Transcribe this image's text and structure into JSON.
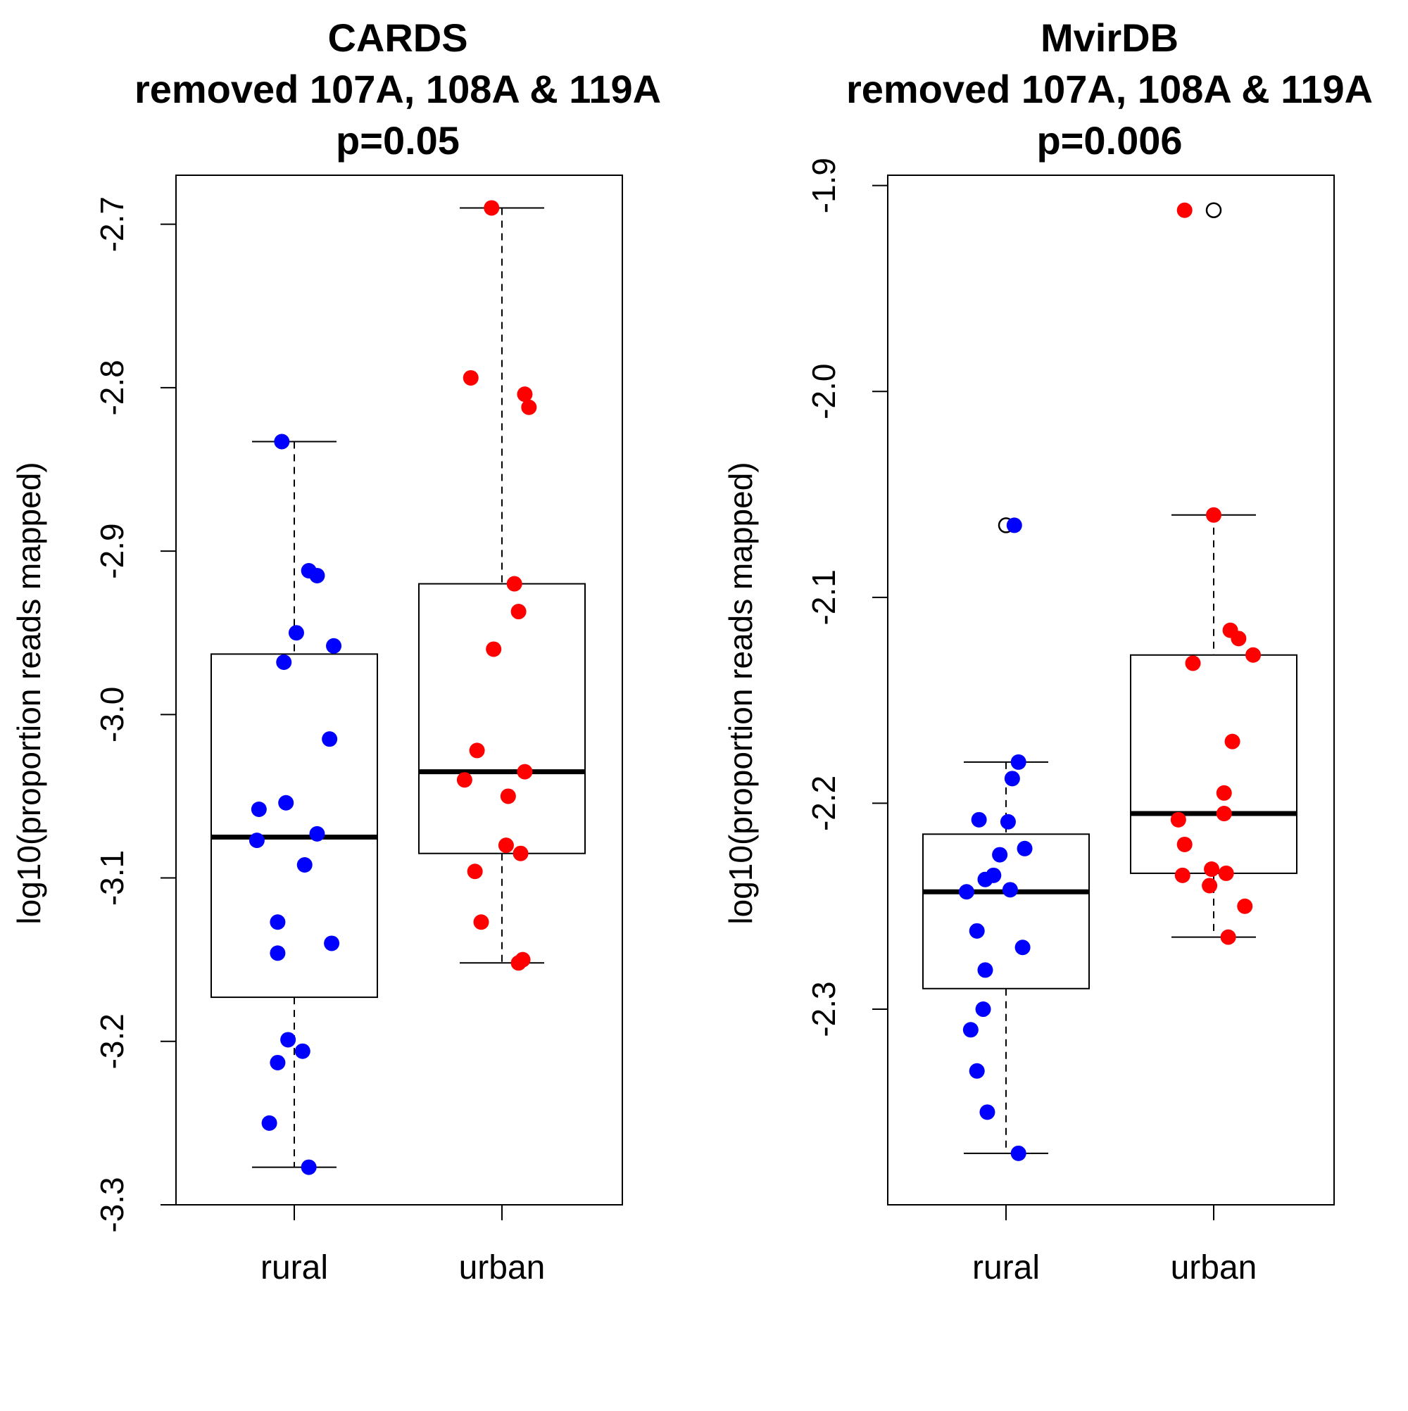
{
  "chart_data": [
    {
      "type": "box",
      "title_lines": [
        "CARDS",
        "removed 107A, 108A & 119A",
        "p=0.05"
      ],
      "ylabel": "log10(proportion reads mapped)",
      "ylim": [
        -3.3,
        -2.67
      ],
      "yticks": [
        -2.7,
        -2.8,
        -2.9,
        -3.0,
        -3.1,
        -3.2,
        -3.3
      ],
      "ytick_labels": [
        "-2.7",
        "-2.8",
        "-2.9",
        "-3.0",
        "-3.1",
        "-3.2",
        "-3.3"
      ],
      "categories": [
        "rural",
        "urban"
      ],
      "grid": false,
      "boxes": [
        {
          "category": "rural",
          "whisker_low": -3.277,
          "q1": -3.173,
          "median": -3.075,
          "q3": -2.963,
          "whisker_high": -2.833,
          "outliers": []
        },
        {
          "category": "urban",
          "whisker_low": -3.152,
          "q1": -3.085,
          "median": -3.035,
          "q3": -2.92,
          "whisker_high": -2.69,
          "outliers": []
        }
      ],
      "points": [
        {
          "category": "rural",
          "color": "#0000ff",
          "offsets": [
            -0.06,
            0.07,
            0.11,
            0.01,
            -0.05,
            0.19,
            0.17,
            -0.17,
            -0.04,
            -0.18,
            0.11,
            0.05,
            -0.08,
            0.18,
            -0.08,
            -0.03,
            -0.08,
            0.04,
            -0.12,
            0.07
          ],
          "values": [
            -2.833,
            -2.912,
            -2.915,
            -2.95,
            -2.968,
            -2.958,
            -3.015,
            -3.058,
            -3.054,
            -3.077,
            -3.073,
            -3.092,
            -3.127,
            -3.14,
            -3.146,
            -3.199,
            -3.213,
            -3.206,
            -3.25,
            -3.277
          ]
        },
        {
          "category": "urban",
          "color": "#ff0000",
          "offsets": [
            -0.05,
            -0.15,
            0.11,
            0.13,
            0.06,
            0.08,
            -0.04,
            -0.12,
            0.11,
            -0.18,
            0.03,
            0.02,
            0.09,
            -0.13,
            -0.1,
            0.1,
            0.08
          ],
          "values": [
            -2.69,
            -2.794,
            -2.804,
            -2.812,
            -2.92,
            -2.937,
            -2.96,
            -3.022,
            -3.035,
            -3.04,
            -3.05,
            -3.08,
            -3.085,
            -3.096,
            -3.127,
            -3.15,
            -3.152
          ]
        }
      ]
    },
    {
      "type": "box",
      "title_lines": [
        "MvirDB",
        "removed 107A, 108A & 119A",
        "p=0.006"
      ],
      "ylabel": "log10(proportion reads mapped)",
      "ylim": [
        -2.395,
        -1.895
      ],
      "yticks": [
        -1.9,
        -2.0,
        -2.1,
        -2.2,
        -2.3
      ],
      "ytick_labels": [
        "-1.9",
        "-2.0",
        "-2.1",
        "-2.2",
        "-2.3"
      ],
      "categories": [
        "rural",
        "urban"
      ],
      "grid": false,
      "boxes": [
        {
          "category": "rural",
          "whisker_low": -2.37,
          "q1": -2.29,
          "median": -2.243,
          "q3": -2.215,
          "whisker_high": -2.18,
          "outliers": [
            -2.065
          ]
        },
        {
          "category": "urban",
          "whisker_low": -2.265,
          "q1": -2.234,
          "median": -2.205,
          "q3": -2.128,
          "whisker_high": -2.06,
          "outliers": [
            -1.912
          ]
        }
      ],
      "points": [
        {
          "category": "rural",
          "color": "#0000ff",
          "offsets": [
            0.04,
            0.06,
            0.03,
            -0.13,
            0.01,
            0.09,
            -0.03,
            -0.06,
            -0.1,
            0.02,
            -0.19,
            -0.14,
            0.08,
            -0.1,
            -0.11,
            -0.17,
            -0.14,
            -0.09,
            0.06
          ],
          "values": [
            -2.065,
            -2.18,
            -2.188,
            -2.208,
            -2.209,
            -2.222,
            -2.225,
            -2.235,
            -2.237,
            -2.242,
            -2.243,
            -2.262,
            -2.27,
            -2.281,
            -2.3,
            -2.31,
            -2.33,
            -2.35,
            -2.37
          ]
        },
        {
          "category": "urban",
          "color": "#ff0000",
          "offsets": [
            -0.14,
            0.0,
            0.08,
            0.12,
            0.19,
            -0.1,
            0.09,
            0.05,
            0.05,
            -0.17,
            -0.14,
            -0.01,
            0.06,
            -0.15,
            -0.02,
            0.15,
            0.07
          ],
          "values": [
            -1.912,
            -2.06,
            -2.116,
            -2.12,
            -2.128,
            -2.132,
            -2.17,
            -2.195,
            -2.205,
            -2.208,
            -2.22,
            -2.232,
            -2.234,
            -2.235,
            -2.24,
            -2.25,
            -2.265
          ]
        }
      ]
    }
  ]
}
